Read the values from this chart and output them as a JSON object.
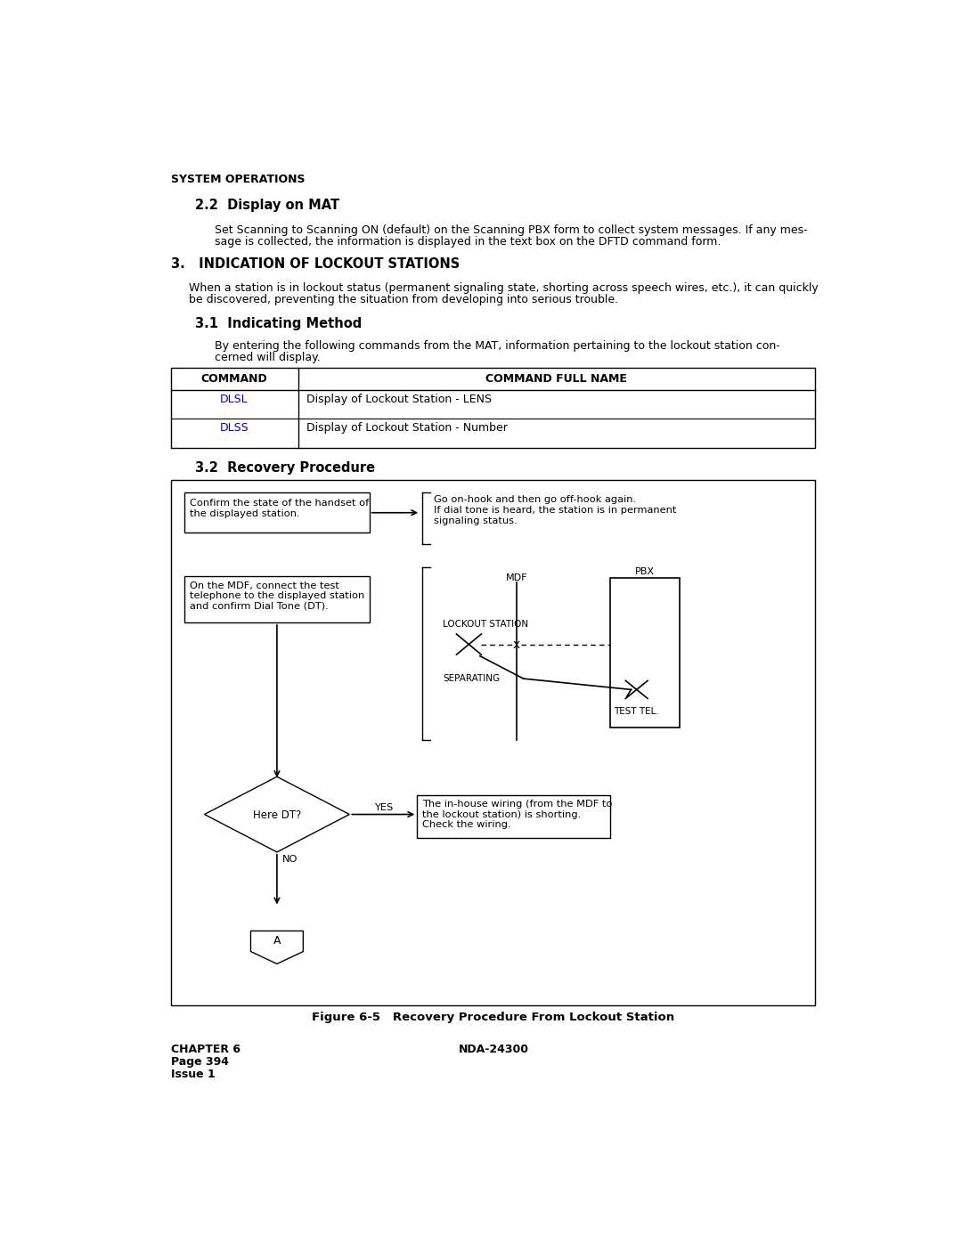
{
  "title_header": "SYSTEM OPERATIONS",
  "section_22_title": "2.2  Display on MAT",
  "section_22_body_1": "Set Scanning to Scanning ON (default) on the Scanning PBX form to collect system messages. If any mes-",
  "section_22_body_2": "sage is collected, the information is displayed in the text box on the DFTD command form.",
  "section_3_title": "3.   INDICATION OF LOCKOUT STATIONS",
  "section_3_body_1": "When a station is in lockout status (permanent signaling state, shorting across speech wires, etc.), it can quickly",
  "section_3_body_2": "be discovered, preventing the situation from developing into serious trouble.",
  "section_31_title": "3.1  Indicating Method",
  "section_31_body_1": "By entering the following commands from the MAT, information pertaining to the lockout station con-",
  "section_31_body_2": "cerned will display.",
  "table_headers": [
    "COMMAND",
    "COMMAND FULL NAME"
  ],
  "table_rows": [
    [
      "DLSL",
      "Display of Lockout Station - LENS"
    ],
    [
      "DLSS",
      "Display of Lockout Station - Number"
    ]
  ],
  "table_link_color": "#0000CC",
  "section_32_title": "3.2  Recovery Procedure",
  "fig_caption": "Figure 6-5   Recovery Procedure From Lockout Station",
  "footer_left": "CHAPTER 6\nPage 394\nIssue 1",
  "footer_right": "NDA-24300",
  "bg_color": "#ffffff",
  "text_color": "#000000"
}
